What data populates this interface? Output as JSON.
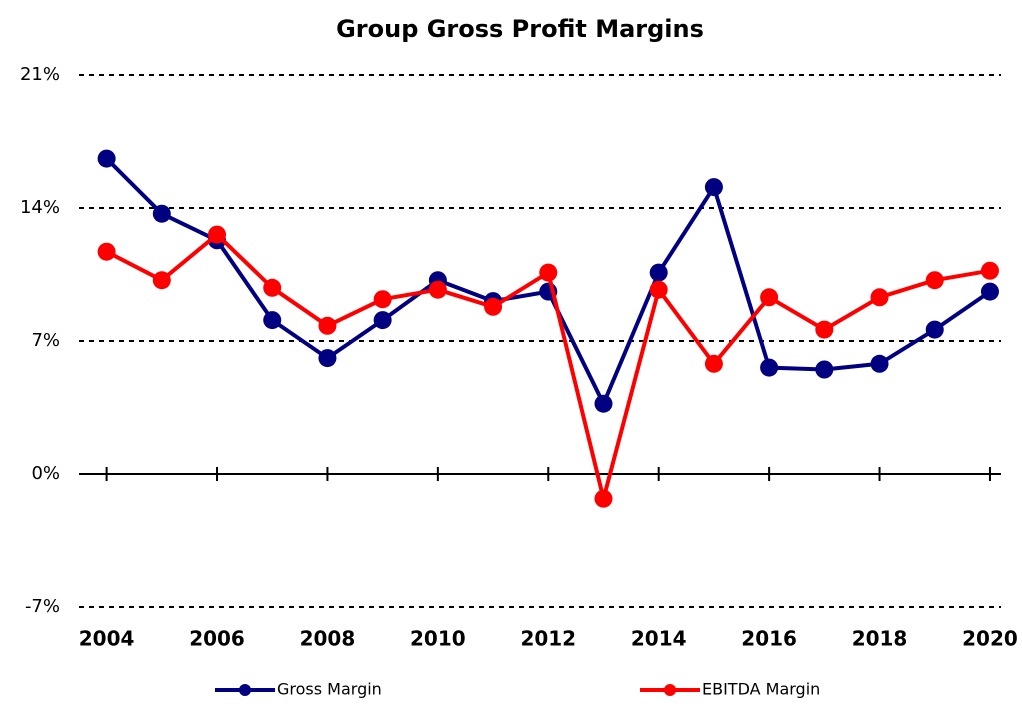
{
  "chart_data": {
    "type": "line",
    "title": "Group Gross Profit Margins",
    "x": [
      2004,
      2005,
      2006,
      2007,
      2008,
      2009,
      2010,
      2011,
      2012,
      2013,
      2014,
      2015,
      2016,
      2017,
      2018,
      2019,
      2020
    ],
    "series": [
      {
        "name": "Gross Margin",
        "color": "#000080",
        "values": [
          16.6,
          13.7,
          12.3,
          8.1,
          6.1,
          8.1,
          10.2,
          9.1,
          9.6,
          3.7,
          10.6,
          15.1,
          5.6,
          5.5,
          5.8,
          7.6,
          9.6
        ]
      },
      {
        "name": "EBITDA Margin",
        "color": "#ff0000",
        "values": [
          11.7,
          10.2,
          12.6,
          9.8,
          7.8,
          9.2,
          9.7,
          8.8,
          10.6,
          -1.3,
          9.7,
          5.8,
          9.3,
          7.6,
          9.3,
          10.2,
          10.7
        ]
      }
    ],
    "xlim": [
      2003.5,
      2020.2
    ],
    "xticks": [
      2004,
      2006,
      2008,
      2010,
      2012,
      2014,
      2016,
      2018,
      2020
    ],
    "ylim": [
      -7,
      21
    ],
    "yticks": [
      {
        "value": -7,
        "label": "-7%"
      },
      {
        "value": 0,
        "label": "0%"
      },
      {
        "value": 7,
        "label": "7%"
      },
      {
        "value": 14,
        "label": "14%"
      },
      {
        "value": 21,
        "label": "21%"
      }
    ],
    "grid": true,
    "legend": "bottom"
  }
}
